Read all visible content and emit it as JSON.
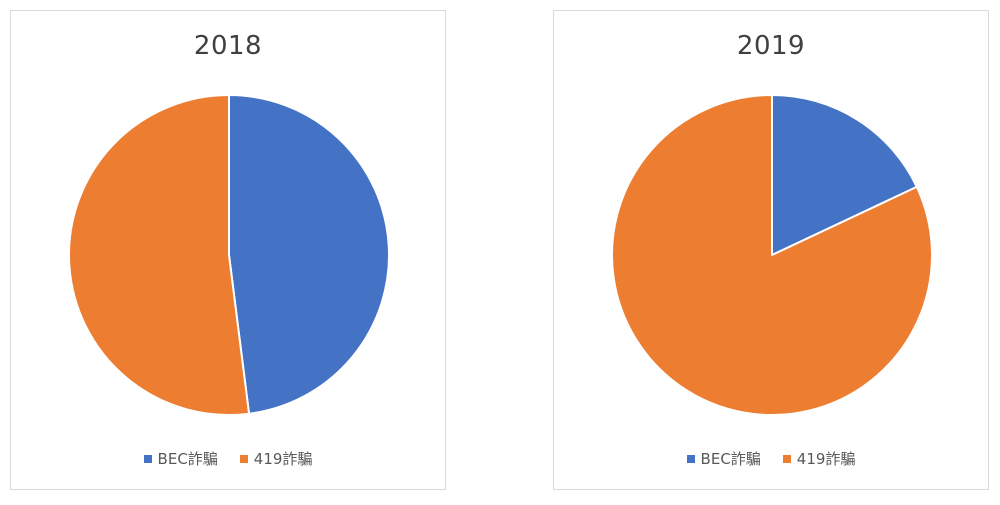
{
  "chart_data": [
    {
      "type": "pie",
      "title": "2018",
      "categories": [
        "BEC詐騙",
        "419詐騙"
      ],
      "values": [
        48,
        52
      ],
      "colors": [
        "#4472c4",
        "#ed7d31"
      ],
      "legend": "bottom"
    },
    {
      "type": "pie",
      "title": "2019",
      "categories": [
        "BEC詐騙",
        "419詐騙"
      ],
      "values": [
        18,
        82
      ],
      "colors": [
        "#4472c4",
        "#ed7d31"
      ],
      "legend": "bottom"
    }
  ]
}
